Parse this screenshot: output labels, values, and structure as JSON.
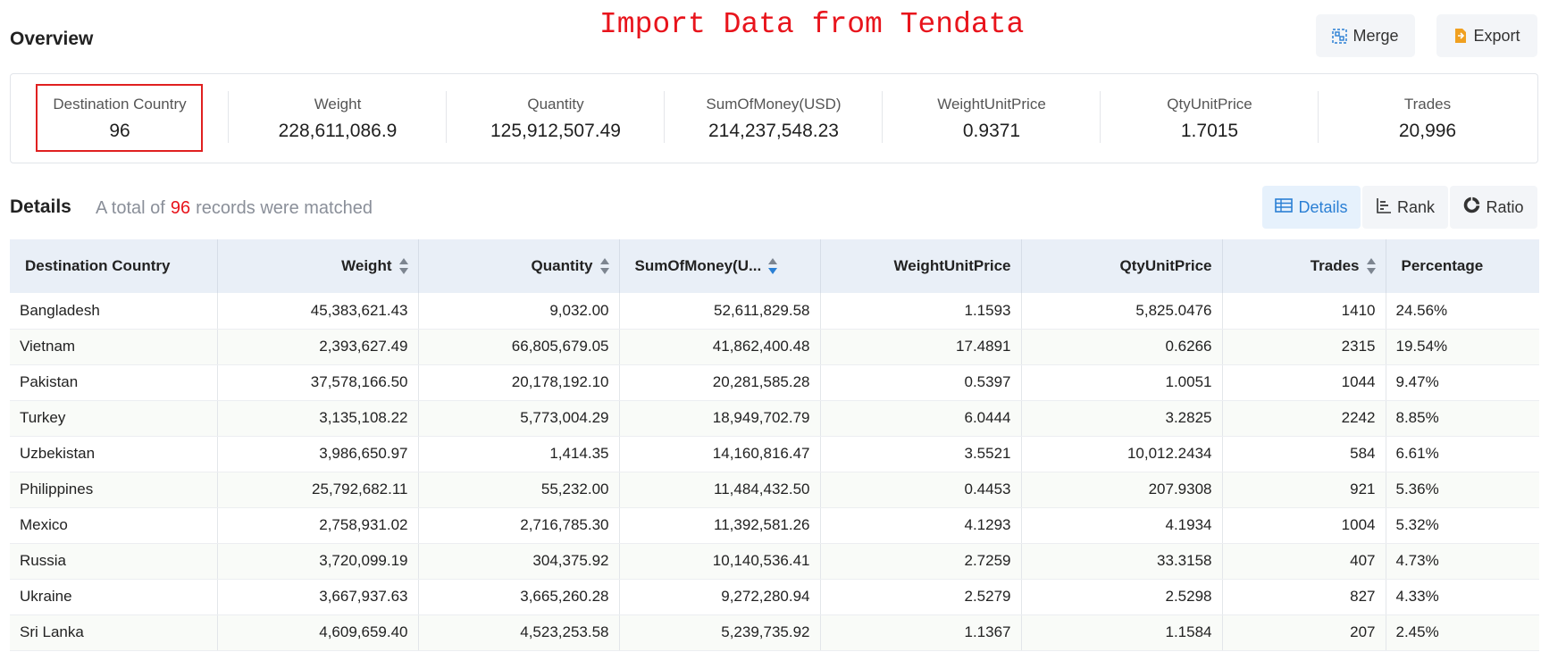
{
  "overview": {
    "title": "Overview",
    "banner": "Import Data from Tendata",
    "merge_label": "Merge",
    "export_label": "Export",
    "stats": [
      {
        "label": "Destination Country",
        "value": "96"
      },
      {
        "label": "Weight",
        "value": "228,611,086.9"
      },
      {
        "label": "Quantity",
        "value": "125,912,507.49"
      },
      {
        "label": "SumOfMoney(USD)",
        "value": "214,237,548.23"
      },
      {
        "label": "WeightUnitPrice",
        "value": "0.9371"
      },
      {
        "label": "QtyUnitPrice",
        "value": "1.7015"
      },
      {
        "label": "Trades",
        "value": "20,996"
      }
    ]
  },
  "details": {
    "title": "Details",
    "summary_prefix": "A total of",
    "count": "96",
    "summary_suffix": "records were matched",
    "views": [
      {
        "label": "Details",
        "icon": "table-icon",
        "active": true
      },
      {
        "label": "Rank",
        "icon": "bar-rank-icon",
        "active": false
      },
      {
        "label": "Ratio",
        "icon": "donut-icon",
        "active": false
      }
    ]
  },
  "table": {
    "columns": [
      {
        "label": "Destination Country",
        "sortable": false
      },
      {
        "label": "Weight",
        "sortable": true
      },
      {
        "label": "Quantity",
        "sortable": true
      },
      {
        "label": "SumOfMoney(U...",
        "sortable": true,
        "sorted": "desc"
      },
      {
        "label": "WeightUnitPrice",
        "sortable": false
      },
      {
        "label": "QtyUnitPrice",
        "sortable": false
      },
      {
        "label": "Trades",
        "sortable": true
      },
      {
        "label": "Percentage",
        "sortable": false
      }
    ],
    "rows": [
      [
        "Bangladesh",
        "45,383,621.43",
        "9,032.00",
        "52,611,829.58",
        "1.1593",
        "5,825.0476",
        "1410",
        "24.56%"
      ],
      [
        "Vietnam",
        "2,393,627.49",
        "66,805,679.05",
        "41,862,400.48",
        "17.4891",
        "0.6266",
        "2315",
        "19.54%"
      ],
      [
        "Pakistan",
        "37,578,166.50",
        "20,178,192.10",
        "20,281,585.28",
        "0.5397",
        "1.0051",
        "1044",
        "9.47%"
      ],
      [
        "Turkey",
        "3,135,108.22",
        "5,773,004.29",
        "18,949,702.79",
        "6.0444",
        "3.2825",
        "2242",
        "8.85%"
      ],
      [
        "Uzbekistan",
        "3,986,650.97",
        "1,414.35",
        "14,160,816.47",
        "3.5521",
        "10,012.2434",
        "584",
        "6.61%"
      ],
      [
        "Philippines",
        "25,792,682.11",
        "55,232.00",
        "11,484,432.50",
        "0.4453",
        "207.9308",
        "921",
        "5.36%"
      ],
      [
        "Mexico",
        "2,758,931.02",
        "2,716,785.30",
        "11,392,581.26",
        "4.1293",
        "4.1934",
        "1004",
        "5.32%"
      ],
      [
        "Russia",
        "3,720,099.19",
        "304,375.92",
        "10,140,536.41",
        "2.7259",
        "33.3158",
        "407",
        "4.73%"
      ],
      [
        "Ukraine",
        "3,667,937.63",
        "3,665,260.28",
        "9,272,280.94",
        "2.5279",
        "2.5298",
        "827",
        "4.33%"
      ],
      [
        "Sri Lanka",
        "4,609,659.40",
        "4,523,253.58",
        "5,239,735.92",
        "1.1367",
        "1.1584",
        "207",
        "2.45%"
      ]
    ]
  },
  "colors": {
    "accent": "#2a7fd4",
    "highlight": "#e8141c",
    "header_bg": "#e9eff7"
  }
}
